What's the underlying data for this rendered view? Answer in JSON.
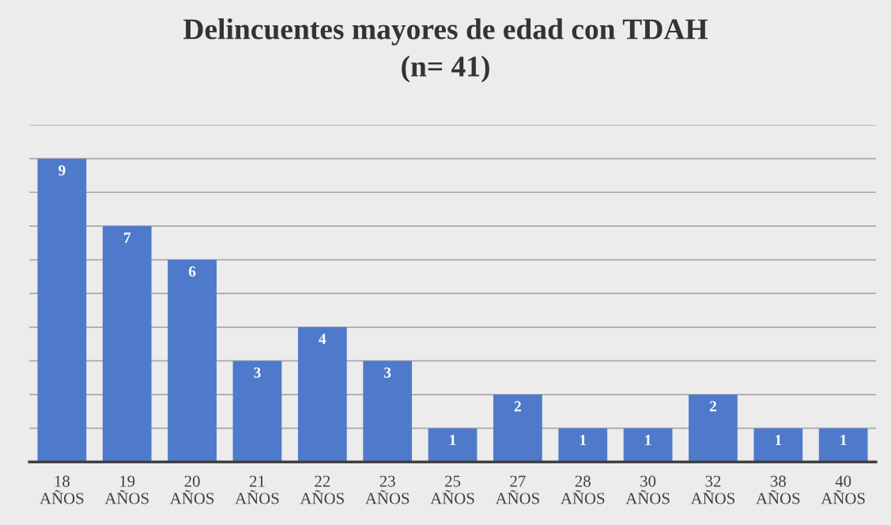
{
  "chart_data": {
    "type": "bar",
    "title": "Delincuentes mayores de edad con TDAH\n(n= 41)",
    "categories": [
      "18\nAÑOS",
      "19\nAÑOS",
      "20\nAÑOS",
      "21\nAÑOS",
      "22\nAÑOS",
      "23\nAÑOS",
      "25\nAÑOS",
      "27\nAÑOS",
      "28\nAÑOS",
      "30\nAÑOS",
      "32\nAÑOS",
      "38\nAÑOS",
      "40\nAÑOS"
    ],
    "values": [
      9,
      7,
      6,
      3,
      4,
      3,
      1,
      2,
      1,
      1,
      2,
      1,
      1
    ],
    "color": "#4f7acb",
    "ylim": [
      0,
      10
    ],
    "yticks": [
      {
        "value": 0,
        "label": null
      },
      {
        "value": 1,
        "label": null
      },
      {
        "value": 2,
        "label": null
      },
      {
        "value": 3,
        "label": null
      },
      {
        "value": 4,
        "label": null
      },
      {
        "value": 5,
        "label": null
      },
      {
        "value": 6,
        "label": null
      },
      {
        "value": 7,
        "label": null
      },
      {
        "value": 8,
        "label": null
      },
      {
        "value": 9,
        "label": null
      },
      {
        "value": 10,
        "label": null
      }
    ],
    "tick_labels": "x",
    "grid": "y",
    "data_labels": true
  }
}
